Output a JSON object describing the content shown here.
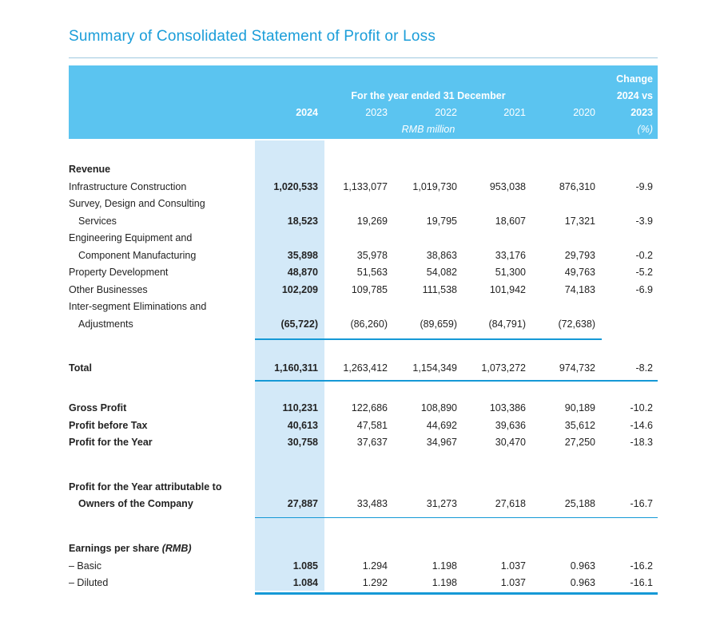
{
  "title": "Summary of Consolidated Statement of Profit or Loss",
  "colors": {
    "title_blue": "#1a9dd9",
    "header_band_blue": "#5bc4f0",
    "highlight_column_blue": "#d3e9f8",
    "rule_blue": "#1599d6",
    "body_text": "#232323",
    "header_text": "#ffffff"
  },
  "header": {
    "change_label_line1": "Change",
    "change_label_line2": "2024 vs",
    "change_label_line3": "2023",
    "change_label_line4": "(%)",
    "period_label": "For the year ended 31 December",
    "unit_label": "RMB million",
    "years": [
      "2024",
      "2023",
      "2022",
      "2021",
      "2020"
    ]
  },
  "table": {
    "rows": [
      {
        "type": "spacer",
        "h": 28
      },
      {
        "type": "row",
        "label": "Revenue",
        "bold": true,
        "values": [
          "",
          "",
          "",
          "",
          "",
          ""
        ]
      },
      {
        "type": "row",
        "label": "Infrastructure Construction",
        "values": [
          "1,020,533",
          "1,133,077",
          "1,019,730",
          "953,038",
          "876,310",
          "-9.9"
        ]
      },
      {
        "type": "row",
        "label": "Survey, Design and Consulting",
        "values": [
          "",
          "",
          "",
          "",
          "",
          ""
        ]
      },
      {
        "type": "row",
        "label": "Services",
        "indent": true,
        "values": [
          "18,523",
          "19,269",
          "19,795",
          "18,607",
          "17,321",
          "-3.9"
        ]
      },
      {
        "type": "row",
        "label": "Engineering Equipment and",
        "values": [
          "",
          "",
          "",
          "",
          "",
          ""
        ]
      },
      {
        "type": "row",
        "label": "Component Manufacturing",
        "indent": true,
        "values": [
          "35,898",
          "35,978",
          "38,863",
          "33,176",
          "29,793",
          "-0.2"
        ]
      },
      {
        "type": "row",
        "label": "Property Development",
        "values": [
          "48,870",
          "51,563",
          "54,082",
          "51,300",
          "49,763",
          "-5.2"
        ]
      },
      {
        "type": "row",
        "label": "Other Businesses",
        "values": [
          "102,209",
          "109,785",
          "111,538",
          "101,942",
          "74,183",
          "-6.9"
        ]
      },
      {
        "type": "row",
        "label": "Inter-segment Eliminations and",
        "values": [
          "",
          "",
          "",
          "",
          "",
          ""
        ]
      },
      {
        "type": "row",
        "label": "Adjustments",
        "indent": true,
        "values": [
          "(65,722)",
          "(86,260)",
          "(89,659)",
          "(84,791)",
          "(72,638)",
          ""
        ]
      },
      {
        "type": "spacer",
        "h": 7
      },
      {
        "type": "line",
        "style": "short",
        "weight": 1.5
      },
      {
        "type": "spacer",
        "h": 25
      },
      {
        "type": "row",
        "label": "Total",
        "bold": true,
        "values": [
          "1,160,311",
          "1,263,412",
          "1,154,349",
          "1,073,272",
          "974,732",
          "-8.2"
        ]
      },
      {
        "type": "spacer",
        "h": 4
      },
      {
        "type": "line",
        "style": "full",
        "weight": 2
      },
      {
        "type": "spacer",
        "h": 23
      },
      {
        "type": "row",
        "label": "Gross Profit",
        "bold": true,
        "values": [
          "110,231",
          "122,686",
          "108,890",
          "103,386",
          "90,189",
          "-10.2"
        ]
      },
      {
        "type": "row",
        "label": "Profit before Tax",
        "bold": true,
        "values": [
          "40,613",
          "47,581",
          "44,692",
          "39,636",
          "35,612",
          "-14.6"
        ]
      },
      {
        "type": "row",
        "label": "Profit for the Year",
        "bold": true,
        "values": [
          "30,758",
          "37,637",
          "34,967",
          "30,470",
          "27,250",
          "-18.3"
        ]
      },
      {
        "type": "spacer",
        "h": 34
      },
      {
        "type": "row",
        "label": "Profit for the Year attributable to",
        "bold": true,
        "values": [
          "",
          "",
          "",
          "",
          "",
          ""
        ]
      },
      {
        "type": "row",
        "label": "Owners of the Company",
        "bold": true,
        "indent": true,
        "values": [
          "27,887",
          "33,483",
          "31,273",
          "27,618",
          "25,188",
          "-16.7"
        ]
      },
      {
        "type": "spacer",
        "h": 5
      },
      {
        "type": "line",
        "style": "full",
        "weight": 1.5
      },
      {
        "type": "spacer",
        "h": 28
      },
      {
        "type": "row",
        "label": "Earnings per share ",
        "suffix": "(RMB)",
        "bold": true,
        "values": [
          "",
          "",
          "",
          "",
          "",
          ""
        ]
      },
      {
        "type": "row",
        "label": "– Basic",
        "values": [
          "1.085",
          "1.294",
          "1.198",
          "1.037",
          "0.963",
          "-16.2"
        ]
      },
      {
        "type": "row",
        "label": "– Diluted",
        "values": [
          "1.084",
          "1.292",
          "1.198",
          "1.037",
          "0.963",
          "-16.1"
        ]
      },
      {
        "type": "line",
        "style": "full",
        "weight": 3
      }
    ]
  }
}
